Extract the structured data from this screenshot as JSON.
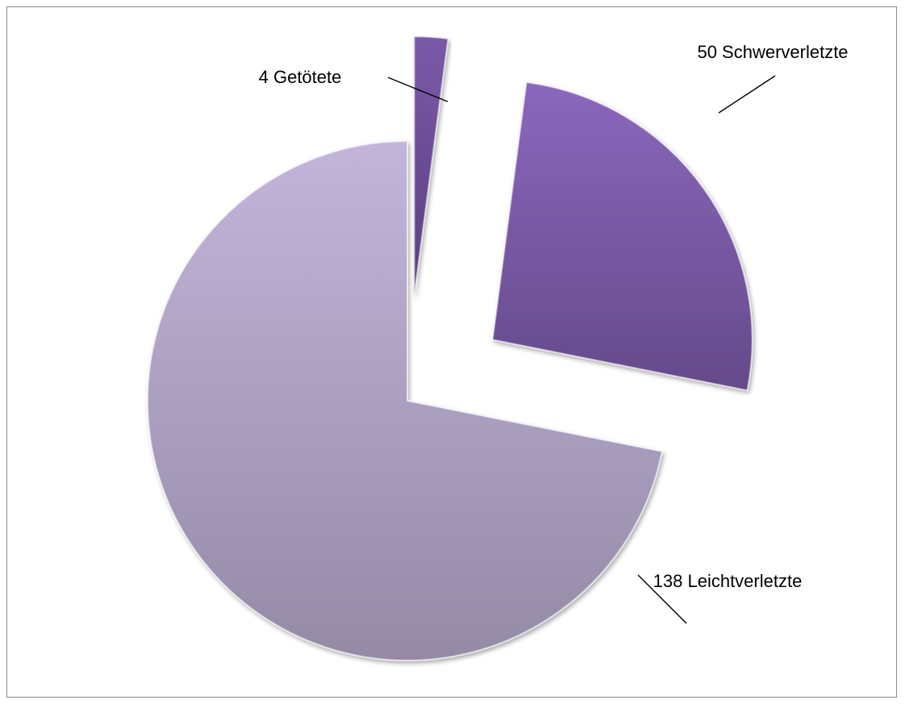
{
  "chart_data": {
    "type": "pie",
    "title": "",
    "exploded": true,
    "slices": [
      {
        "label": "4 Getötete",
        "value": 4,
        "color": "#6b4c92"
      },
      {
        "label": "50 Schwerverletzte",
        "value": 50,
        "color": "#7c5aa6"
      },
      {
        "label": "138 Leichtverletzte",
        "value": 138,
        "color": "#b3a3c8"
      }
    ]
  }
}
